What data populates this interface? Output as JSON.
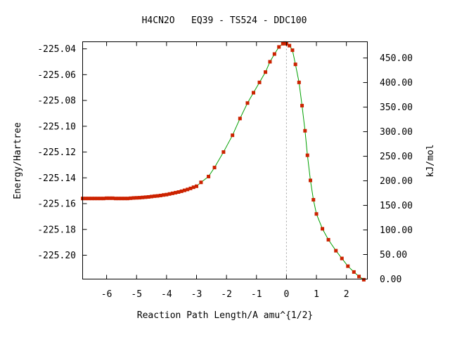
{
  "chart_data": {
    "type": "line",
    "title": "H4CN2O   EQ39 - TS524 - DDC100",
    "xlabel": "Reaction Path Length/A amu^{1/2}",
    "ylabel": "Energy/Hartree",
    "y2label": "kJ/mol",
    "xlim": [
      -6.8,
      2.7
    ],
    "ylim": [
      -225.2185,
      -225.0345
    ],
    "y2lim": [
      0.0,
      483.0
    ],
    "x_ticks": [
      -6,
      -5,
      -4,
      -3,
      -2,
      -1,
      0,
      1,
      2
    ],
    "x_tick_labels": [
      "-6",
      "-5",
      "-4",
      "-3",
      "-2",
      "-1",
      "0",
      "1",
      "2"
    ],
    "y_ticks": [
      -225.04,
      -225.06,
      -225.08,
      -225.1,
      -225.12,
      -225.14,
      -225.16,
      -225.18,
      -225.2
    ],
    "y_tick_labels": [
      "-225.04",
      "-225.06",
      "-225.08",
      "-225.10",
      "-225.12",
      "-225.14",
      "-225.16",
      "-225.18",
      "-225.20"
    ],
    "y2_ticks": [
      0,
      50,
      100,
      150,
      200,
      250,
      300,
      350,
      400,
      450
    ],
    "y2_tick_labels": [
      "0.00",
      "50.00",
      "100.00",
      "150.00",
      "200.00",
      "250.00",
      "300.00",
      "350.00",
      "400.00",
      "450.00"
    ],
    "zero_line_x": 0,
    "colors": {
      "line": "#00a000",
      "marker": "#cc2200"
    },
    "series": [
      {
        "x": [
          -6.8,
          -6.7,
          -6.6,
          -6.5,
          -6.4,
          -6.3,
          -6.2,
          -6.1,
          -6.0,
          -5.9,
          -5.8,
          -5.7,
          -5.6,
          -5.5,
          -5.4,
          -5.3,
          -5.2,
          -5.1,
          -5.0,
          -4.9,
          -4.8,
          -4.7,
          -4.6,
          -4.5,
          -4.4,
          -4.3,
          -4.2,
          -4.1,
          -4.0,
          -3.9,
          -3.8,
          -3.7,
          -3.6,
          -3.5,
          -3.4,
          -3.3,
          -3.2,
          -3.1,
          -3.0,
          -2.85,
          -2.6,
          -2.4,
          -2.1,
          -1.8,
          -1.55,
          -1.3,
          -1.1,
          -0.9,
          -0.7,
          -0.55,
          -0.4,
          -0.25,
          -0.12,
          -0.05,
          0.0,
          0.1,
          0.2,
          0.3,
          0.42,
          0.52,
          0.62,
          0.7,
          0.8,
          0.9,
          1.0,
          1.2,
          1.4,
          1.65,
          1.85,
          2.05,
          2.25,
          2.42,
          2.58
        ],
        "y": [
          -225.156,
          -225.156,
          -225.156,
          -225.156,
          -225.156,
          -225.156,
          -225.156,
          -225.156,
          -225.1558,
          -225.1558,
          -225.1558,
          -225.156,
          -225.156,
          -225.156,
          -225.156,
          -225.156,
          -225.1558,
          -225.1556,
          -225.1555,
          -225.1554,
          -225.1552,
          -225.155,
          -225.1548,
          -225.1545,
          -225.1542,
          -225.154,
          -225.1537,
          -225.1533,
          -225.153,
          -225.1525,
          -225.152,
          -225.1515,
          -225.151,
          -225.1504,
          -225.1497,
          -225.149,
          -225.1482,
          -225.1473,
          -225.1465,
          -225.1435,
          -225.139,
          -225.132,
          -225.12,
          -225.107,
          -225.094,
          -225.082,
          -225.074,
          -225.066,
          -225.058,
          -225.05,
          -225.044,
          -225.0385,
          -225.036,
          -225.0355,
          -225.036,
          -225.0375,
          -225.041,
          -225.052,
          -225.066,
          -225.084,
          -225.1035,
          -225.1225,
          -225.142,
          -225.157,
          -225.168,
          -225.1795,
          -225.188,
          -225.1965,
          -225.2025,
          -225.2085,
          -225.213,
          -225.2165,
          -225.219
        ]
      }
    ]
  }
}
